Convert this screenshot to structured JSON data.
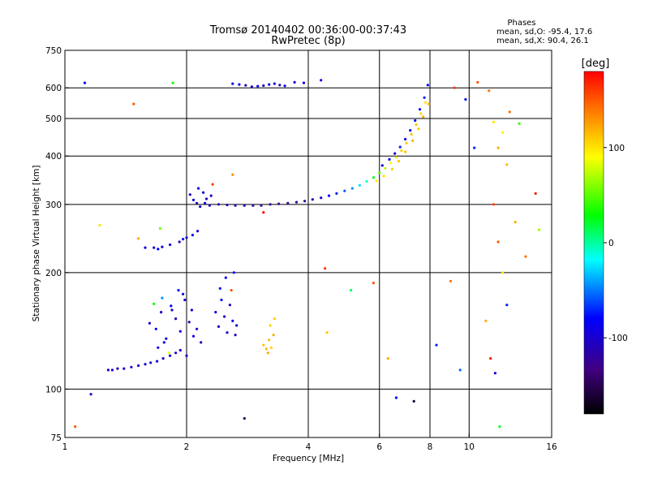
{
  "chart_data": {
    "type": "scatter",
    "title": "Tromsø 20140402 00:36:00-00:37:43",
    "subtitle": "RwPretec (8p)",
    "xlabel": "Frequency [MHz]",
    "ylabel": "Stationary phase Virtual Height [km]",
    "x_scale": "log",
    "y_scale": "log",
    "xlim": [
      1,
      16
    ],
    "ylim": [
      75,
      750
    ],
    "x_ticks": [
      1,
      2,
      4,
      6,
      8,
      10,
      16
    ],
    "y_ticks": [
      75,
      100,
      200,
      300,
      400,
      500,
      600,
      750
    ],
    "x_tick_labels": [
      "1",
      "2",
      "4",
      "6",
      "8",
      "10",
      "16"
    ],
    "y_tick_labels": [
      "75",
      "100",
      "200",
      "300",
      "400",
      "500",
      "600",
      "750"
    ],
    "grid": true,
    "legend": {
      "title": "Phases",
      "lines": [
        "mean, sd,O: -95.4, 17.6",
        "mean, sd,X:  90.4, 26.1"
      ]
    },
    "colorbar": {
      "label": "[deg]",
      "range": [
        -180,
        180
      ],
      "ticks": [
        100,
        0,
        -100
      ],
      "tick_labels": [
        "100",
        "0",
        "-100"
      ]
    },
    "series": [
      {
        "points": [
          [
            1.28,
            112,
            -118
          ],
          [
            1.31,
            112,
            -110
          ],
          [
            1.35,
            113,
            -120
          ],
          [
            1.4,
            113,
            -115
          ],
          [
            1.46,
            114,
            -112
          ],
          [
            1.52,
            115,
            -118
          ],
          [
            1.58,
            116,
            -108
          ],
          [
            1.63,
            117,
            -114
          ],
          [
            1.69,
            118,
            -110
          ],
          [
            1.75,
            120,
            -116
          ],
          [
            1.82,
            122,
            -105
          ],
          [
            1.88,
            124,
            -112
          ],
          [
            1.93,
            126,
            -110
          ],
          [
            1.62,
            148,
            -112
          ],
          [
            1.68,
            143,
            -105
          ],
          [
            1.73,
            158,
            -118
          ],
          [
            1.78,
            135,
            -110
          ],
          [
            1.83,
            164,
            -100
          ],
          [
            1.88,
            152,
            -115
          ],
          [
            1.93,
            141,
            -108
          ],
          [
            1.98,
            170,
            -112
          ],
          [
            2.03,
            149,
            -120
          ],
          [
            2.08,
            137,
            -106
          ],
          [
            1.7,
            128,
            -110
          ],
          [
            1.76,
            132,
            -102
          ],
          [
            1.84,
            160,
            -116
          ],
          [
            1.96,
            176,
            -109
          ],
          [
            2.06,
            160,
            -104
          ],
          [
            2.12,
            143,
            -111
          ],
          [
            2.17,
            132,
            -119
          ],
          [
            1.66,
            166,
            20
          ],
          [
            1.74,
            172,
            -60
          ],
          [
            1.91,
            180,
            -98
          ],
          [
            2.0,
            122,
            -114
          ],
          [
            1.81,
            124,
            80
          ],
          [
            2.36,
            158,
            -105
          ],
          [
            2.4,
            145,
            -112
          ],
          [
            2.44,
            170,
            -100
          ],
          [
            2.48,
            154,
            -115
          ],
          [
            2.52,
            140,
            -108
          ],
          [
            2.56,
            165,
            -110
          ],
          [
            2.6,
            150,
            -106
          ],
          [
            2.64,
            138,
            -118
          ],
          [
            2.42,
            182,
            -95
          ],
          [
            2.5,
            194,
            -110
          ],
          [
            2.58,
            180,
            150
          ],
          [
            2.62,
            200,
            -100
          ],
          [
            2.66,
            146,
            -112
          ],
          [
            3.1,
            130,
            110
          ],
          [
            3.15,
            127,
            115
          ],
          [
            3.2,
            134,
            112
          ],
          [
            3.24,
            128,
            108
          ],
          [
            3.28,
            138,
            118
          ],
          [
            3.22,
            146,
            105
          ],
          [
            3.3,
            152,
            110
          ],
          [
            3.18,
            124,
            120
          ],
          [
            1.58,
            232,
            -110
          ],
          [
            1.66,
            232,
            -115
          ],
          [
            1.74,
            233,
            -108
          ],
          [
            1.82,
            236,
            -112
          ],
          [
            1.92,
            240,
            -118
          ],
          [
            2.0,
            246,
            -110
          ],
          [
            2.07,
            250,
            -105
          ],
          [
            2.13,
            256,
            -112
          ],
          [
            1.7,
            230,
            -100
          ],
          [
            1.96,
            244,
            -95
          ],
          [
            2.04,
            318,
            -115
          ],
          [
            2.08,
            308,
            -110
          ],
          [
            2.12,
            302,
            -120
          ],
          [
            2.16,
            296,
            -112
          ],
          [
            2.2,
            322,
            -108
          ],
          [
            2.24,
            310,
            -118
          ],
          [
            2.28,
            298,
            -112
          ],
          [
            2.14,
            330,
            -100
          ],
          [
            2.22,
            302,
            -105
          ],
          [
            2.3,
            316,
            -115
          ],
          [
            2.4,
            300,
            -118
          ],
          [
            2.52,
            299,
            -120
          ],
          [
            2.64,
            298,
            -122
          ],
          [
            2.78,
            298,
            -120
          ],
          [
            2.92,
            298,
            -125
          ],
          [
            3.06,
            298,
            -128
          ],
          [
            3.22,
            300,
            -130
          ],
          [
            3.38,
            301,
            -132
          ],
          [
            3.56,
            302,
            -130
          ],
          [
            3.74,
            304,
            -128
          ],
          [
            3.92,
            306,
            -126
          ],
          [
            4.1,
            309,
            -120
          ],
          [
            4.3,
            312,
            -110
          ],
          [
            4.5,
            316,
            -100
          ],
          [
            4.7,
            320,
            -90
          ],
          [
            4.92,
            325,
            -75
          ],
          [
            5.14,
            330,
            -60
          ],
          [
            5.36,
            336,
            -40
          ],
          [
            5.58,
            344,
            -20
          ],
          [
            5.8,
            352,
            10
          ],
          [
            6.0,
            362,
            40
          ],
          [
            6.2,
            372,
            70
          ],
          [
            6.4,
            384,
            90
          ],
          [
            6.6,
            397,
            100
          ],
          [
            6.8,
            413,
            106
          ],
          [
            7.0,
            432,
            110
          ],
          [
            7.2,
            455,
            112
          ],
          [
            7.4,
            482,
            108
          ],
          [
            7.6,
            515,
            104
          ],
          [
            7.8,
            550,
            100
          ],
          [
            6.1,
            378,
            -110
          ],
          [
            6.35,
            392,
            -100
          ],
          [
            6.55,
            406,
            -115
          ],
          [
            6.75,
            422,
            -90
          ],
          [
            6.95,
            442,
            -105
          ],
          [
            7.15,
            466,
            -100
          ],
          [
            7.35,
            494,
            -95
          ],
          [
            7.55,
            528,
            -98
          ],
          [
            7.75,
            566,
            -92
          ],
          [
            7.9,
            610,
            -100
          ],
          [
            5.9,
            345,
            95
          ],
          [
            6.15,
            355,
            100
          ],
          [
            6.45,
            370,
            108
          ],
          [
            6.7,
            388,
            110
          ],
          [
            6.95,
            410,
            112
          ],
          [
            7.25,
            438,
            115
          ],
          [
            7.5,
            470,
            110
          ],
          [
            7.7,
            505,
            118
          ],
          [
            7.95,
            545,
            120
          ],
          [
            2.6,
            615,
            -110
          ],
          [
            2.7,
            612,
            -105
          ],
          [
            2.8,
            609,
            -120
          ],
          [
            2.9,
            604,
            -112
          ],
          [
            3.0,
            606,
            -100
          ],
          [
            3.1,
            608,
            -115
          ],
          [
            3.2,
            612,
            -108
          ],
          [
            3.3,
            615,
            -110
          ],
          [
            3.4,
            610,
            -118
          ],
          [
            3.5,
            607,
            -104
          ],
          [
            3.7,
            620,
            -112
          ],
          [
            3.9,
            618,
            -106
          ],
          [
            4.3,
            628,
            -110
          ],
          [
            1.12,
            618,
            -100
          ],
          [
            1.48,
            545,
            150
          ],
          [
            1.85,
            618,
            20
          ],
          [
            2.32,
            338,
            160
          ],
          [
            2.6,
            358,
            130
          ],
          [
            1.52,
            245,
            120
          ],
          [
            1.72,
            260,
            50
          ],
          [
            1.22,
            265,
            100
          ],
          [
            1.16,
            97,
            -120
          ],
          [
            1.06,
            80,
            150
          ],
          [
            2.78,
            84,
            -150
          ],
          [
            3.1,
            286,
            180
          ],
          [
            4.4,
            205,
            160
          ],
          [
            4.45,
            140,
            110
          ],
          [
            5.1,
            180,
            0
          ],
          [
            5.8,
            188,
            150
          ],
          [
            6.3,
            120,
            120
          ],
          [
            6.6,
            95,
            -100
          ],
          [
            7.3,
            93,
            -160
          ],
          [
            8.3,
            130,
            -90
          ],
          [
            9.0,
            190,
            140
          ],
          [
            9.5,
            112,
            -70
          ],
          [
            10.5,
            620,
            150
          ],
          [
            11.2,
            590,
            140
          ],
          [
            11.5,
            490,
            100
          ],
          [
            11.8,
            420,
            120
          ],
          [
            12.1,
            460,
            95
          ],
          [
            12.4,
            380,
            115
          ],
          [
            11.5,
            300,
            160
          ],
          [
            11.8,
            240,
            150
          ],
          [
            12.1,
            200,
            100
          ],
          [
            11.0,
            150,
            120
          ],
          [
            11.3,
            120,
            170
          ],
          [
            11.6,
            110,
            -110
          ],
          [
            11.9,
            80,
            10
          ],
          [
            12.4,
            165,
            -90
          ],
          [
            13.0,
            270,
            120
          ],
          [
            13.8,
            220,
            140
          ],
          [
            14.6,
            320,
            170
          ],
          [
            14.9,
            258,
            60
          ],
          [
            9.8,
            560,
            -100
          ],
          [
            9.2,
            600,
            160
          ],
          [
            10.3,
            420,
            -90
          ],
          [
            12.6,
            520,
            140
          ],
          [
            13.3,
            485,
            30
          ]
        ]
      }
    ]
  }
}
